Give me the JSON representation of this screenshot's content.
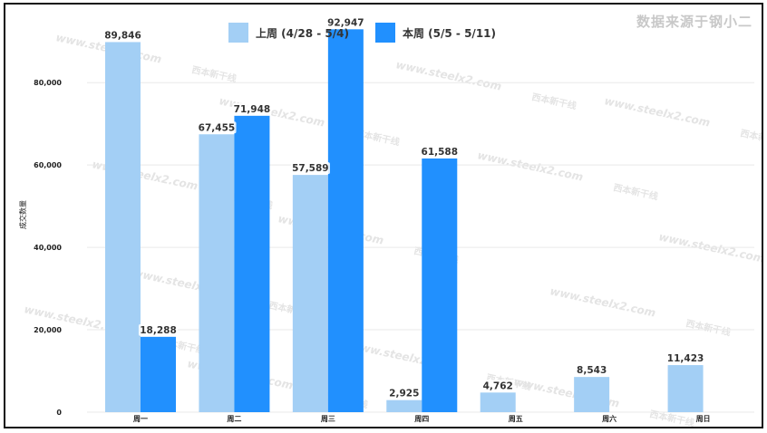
{
  "source_label": "数据来源于钢小二",
  "watermark_url": "www.steelx2.com",
  "watermark_brand": "西本新干线",
  "colors": {
    "last_week": "#a3cff5",
    "this_week": "#2190fe",
    "grid": "#e9e9e9",
    "axis_text": "#222222",
    "label_text": "#333333"
  },
  "chart_data": {
    "type": "bar",
    "categories": [
      "周一",
      "周二",
      "周三",
      "周四",
      "周五",
      "周六",
      "周日"
    ],
    "series": [
      {
        "name": "上周 (4/28 - 5/4)",
        "values": [
          89846,
          67455,
          57589,
          2925,
          4762,
          8543,
          11423
        ]
      },
      {
        "name": "本周 (5/5 - 5/11)",
        "values": [
          18288,
          71948,
          92947,
          61588,
          null,
          null,
          null
        ]
      }
    ],
    "value_labels": [
      [
        "89,846",
        "67,455",
        "57,589",
        "2,925",
        "4,762",
        "8,543",
        "11,423"
      ],
      [
        "18,288",
        "71,948",
        "92,947",
        "61,588",
        "",
        "",
        ""
      ]
    ],
    "ylabel": "成交数量",
    "ylim": [
      0,
      95000
    ],
    "yticks": [
      0,
      20000,
      40000,
      60000,
      80000
    ],
    "ytick_labels": [
      "0",
      "20,000",
      "40,000",
      "60,000",
      "80,000"
    ],
    "legend_position": "top-center",
    "grid": true
  }
}
